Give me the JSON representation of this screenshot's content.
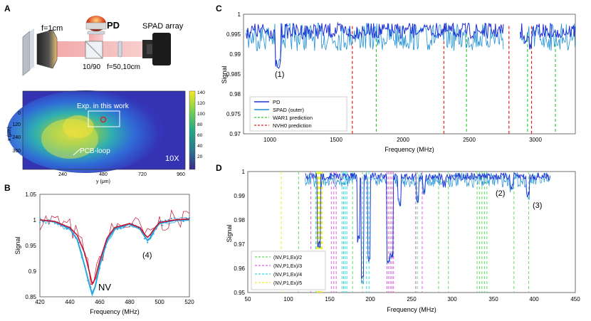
{
  "panels": {
    "a": {
      "letter": "A",
      "pd_label": "PD",
      "spad_label": "SPAD array",
      "lens_label": "f=1cm",
      "split_label": "10/90",
      "lens2_label": "f=50,10cm",
      "map": {
        "annotation": "Exp. in this work",
        "loop_label": "PCB-loop",
        "zoom": "10X",
        "colorbar_ticks": [
          "140",
          "120",
          "100",
          "80",
          "60",
          "40",
          "20"
        ],
        "xticks": [
          "240",
          "480",
          "720",
          "960"
        ],
        "yticks": [
          "0",
          "120",
          "240",
          "360"
        ],
        "xlabel": "y (μm)",
        "ylabel": "x (μm)"
      }
    },
    "b": {
      "letter": "B",
      "xlabel": "Frequency (MHz)",
      "ylabel": "Signal",
      "xticks": [
        "420",
        "440",
        "460",
        "480",
        "500",
        "520"
      ],
      "yticks": [
        "1.05",
        "1",
        "0.95",
        "0.9",
        "0.85"
      ],
      "nv_label": "NV",
      "peak4_label": "(4)"
    },
    "c": {
      "letter": "C",
      "xlabel": "Frequency (MHz)",
      "ylabel": "Signal",
      "xticks": [
        "1000",
        "1500",
        "2000",
        "2500",
        "3000"
      ],
      "yticks": [
        "1",
        "0.995",
        "0.99",
        "0.985",
        "0.98",
        "0.975",
        "0.97"
      ],
      "peak1_label": "(1)",
      "legend": [
        "PD",
        "SPAD (outer)",
        "WAR1 prediction",
        "NVH0 prediction"
      ]
    },
    "d": {
      "letter": "D",
      "xlabel": "Frequency (MHz)",
      "ylabel": "Signal",
      "xticks": [
        "50",
        "100",
        "150",
        "200",
        "250",
        "300",
        "350",
        "400",
        "450"
      ],
      "yticks": [
        "1",
        "0.99",
        "0.98",
        "0.97",
        "0.96",
        "0.95"
      ],
      "peak2_label": "(2)",
      "peak3_label": "(3)",
      "legend": [
        "(NV,P1,Ex)/2",
        "(NV,P1,Ex)/3",
        "(NV,P1,Ex)/4",
        "(NV,P1,Ex)/5"
      ]
    }
  },
  "colors": {
    "pd": "#1f2fd6",
    "spad": "#1e90d6",
    "war1": "#33cc33",
    "nvh0": "#e02020",
    "fit_red": "#c8102e",
    "fit_blue": "#2aa7e0",
    "d_green": "#66dd66",
    "d_magenta": "#dd66dd",
    "d_cyan": "#33dddd",
    "d_yellow": "#eeee33"
  },
  "chart_data": [
    {
      "panel": "B",
      "type": "line",
      "title": "",
      "xlabel": "Frequency (MHz)",
      "ylabel": "Signal",
      "xlim": [
        420,
        520
      ],
      "ylim": [
        0.85,
        1.05
      ],
      "series": [
        {
          "name": "fit (red)",
          "x": [
            420,
            430,
            440,
            445,
            450,
            453,
            455,
            457,
            460,
            465,
            470,
            480,
            487,
            490,
            492,
            494,
            497,
            500,
            510,
            520
          ],
          "y": [
            1.0,
            0.997,
            0.985,
            0.97,
            0.935,
            0.9,
            0.875,
            0.885,
            0.92,
            0.965,
            0.985,
            0.993,
            0.985,
            0.972,
            0.966,
            0.972,
            0.985,
            0.995,
            1.0,
            1.002
          ]
        },
        {
          "name": "fit (blue)",
          "x": [
            420,
            430,
            440,
            445,
            450,
            453,
            455,
            457,
            460,
            465,
            470,
            480,
            487,
            490,
            492,
            494,
            497,
            500,
            510,
            520
          ],
          "y": [
            1.0,
            0.996,
            0.982,
            0.962,
            0.91,
            0.875,
            0.855,
            0.87,
            0.91,
            0.96,
            0.982,
            0.992,
            0.982,
            0.968,
            0.96,
            0.966,
            0.982,
            0.993,
            0.999,
            1.0
          ]
        }
      ]
    },
    {
      "panel": "C",
      "type": "line",
      "xlabel": "Frequency (MHz)",
      "ylabel": "Signal",
      "xlim": [
        800,
        3300
      ],
      "ylim": [
        0.97,
        1.0
      ],
      "series": [
        {
          "name": "WAR1 prediction",
          "x": [
            1800,
            2480,
            2940,
            3150
          ],
          "style": "dashed-green"
        },
        {
          "name": "NVH0 prediction",
          "x": [
            1620,
            2310,
            2800,
            2970
          ],
          "style": "dashed-red"
        }
      ]
    },
    {
      "panel": "D",
      "type": "line",
      "xlabel": "Frequency (MHz)",
      "ylabel": "Signal",
      "xlim": [
        50,
        450
      ],
      "ylim": [
        0.95,
        1.0
      ],
      "series": [
        {
          "name": "(NV,P1,Ex)/2",
          "x": [
            112,
            137,
            178,
            190,
            257,
            283,
            295,
            330,
            333,
            336,
            339,
            342,
            375,
            393
          ]
        },
        {
          "name": "(NV,P1,Ex)/3",
          "x": [
            127,
            152,
            155,
            158,
            220,
            222,
            224,
            226,
            228,
            255,
            263
          ]
        },
        {
          "name": "(NV,P1,Ex)/4",
          "x": [
            133,
            136,
            165,
            167,
            169,
            171,
            195,
            198
          ]
        },
        {
          "name": "(NV,P1,Ex)/5",
          "x": [
            91,
            134,
            135,
            136,
            137,
            138,
            139,
            140,
            141
          ]
        }
      ]
    }
  ]
}
